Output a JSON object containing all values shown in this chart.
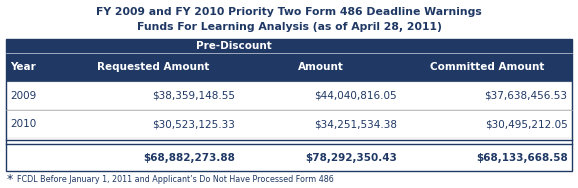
{
  "title_line1": "FY 2009 and FY 2010 Priority Two Form 486 Deadline Warnings",
  "title_line2": "Funds For Learning Analysis (as of April 28, 2011)",
  "header_bg": "#1F3864",
  "header_text_color": "#FFFFFF",
  "title_text_color": "#1F3864",
  "col_headers_row2": [
    "Year",
    "Requested Amount",
    "Amount",
    "Committed Amount"
  ],
  "rows": [
    [
      "2009",
      "$38,359,148.55",
      "$44,040,816.05",
      "$37,638,456.53"
    ],
    [
      "2010",
      "$30,523,125.33",
      "$34,251,534.38",
      "$30,495,212.05"
    ]
  ],
  "totals": [
    "",
    "$68,882,273.88",
    "$78,292,350.43",
    "$68,133,668.58"
  ],
  "footnote_star": "*",
  "footnote_text": "FCDL Before January 1, 2011 and Applicant’s Do Not Have Processed Form 486",
  "background_color": "#FFFFFF",
  "dark_blue": "#1F3864"
}
